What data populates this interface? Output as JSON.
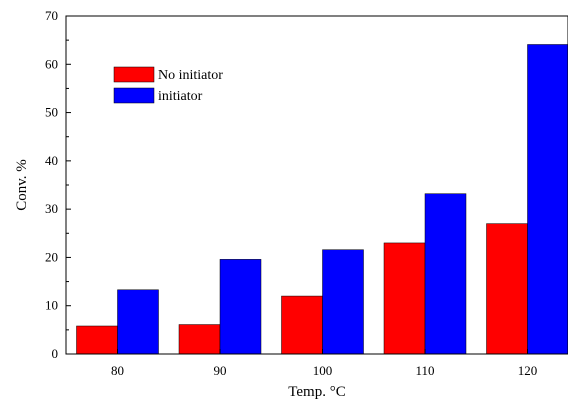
{
  "chart_data": {
    "type": "bar",
    "categories": [
      "80",
      "90",
      "100",
      "110",
      "120"
    ],
    "series": [
      {
        "name": "No initiator",
        "color": "#ff0000",
        "values": [
          5.8,
          6.1,
          12.0,
          23.0,
          27.0
        ]
      },
      {
        "name": "initiator",
        "color": "#0000ff",
        "values": [
          13.3,
          19.6,
          21.6,
          33.2,
          64.1
        ]
      }
    ],
    "xlabel": "Temp. °C",
    "ylabel": "Conv. %",
    "ylim": [
      0,
      70
    ],
    "yticks": [
      "0",
      "10",
      "20",
      "30",
      "40",
      "50",
      "60",
      "70"
    ],
    "grid": false,
    "legend_position": "top-left"
  }
}
